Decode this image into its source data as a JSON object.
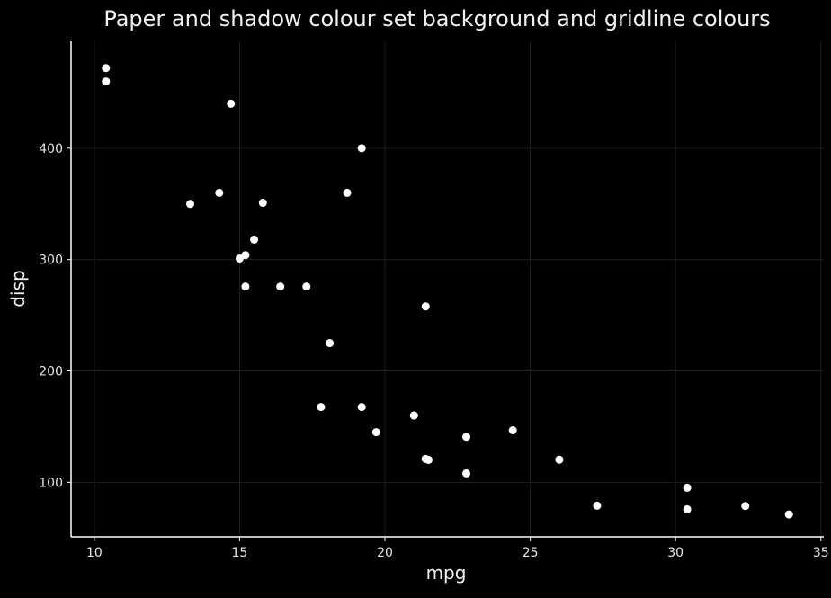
{
  "chart_data": {
    "type": "scatter",
    "title": "Paper and shadow colour set background and gridline colours",
    "xlabel": "mpg",
    "ylabel": "disp",
    "xlim": [
      9.2,
      35.1
    ],
    "ylim": [
      51,
      496
    ],
    "xticks": [
      10,
      15,
      20,
      25,
      30,
      35
    ],
    "yticks": [
      100,
      200,
      300,
      400
    ],
    "grid": true,
    "colors": {
      "background": "#000000",
      "grid": "#1e1e1e",
      "axis": "#ffffff",
      "point": "#ffffff",
      "text": "#f2f2f2"
    },
    "points": [
      {
        "x": 21.0,
        "y": 160
      },
      {
        "x": 21.0,
        "y": 160
      },
      {
        "x": 22.8,
        "y": 108
      },
      {
        "x": 21.4,
        "y": 258
      },
      {
        "x": 18.7,
        "y": 360
      },
      {
        "x": 18.1,
        "y": 225
      },
      {
        "x": 14.3,
        "y": 360
      },
      {
        "x": 24.4,
        "y": 146.7
      },
      {
        "x": 22.8,
        "y": 140.8
      },
      {
        "x": 19.2,
        "y": 167.6
      },
      {
        "x": 17.8,
        "y": 167.6
      },
      {
        "x": 16.4,
        "y": 275.8
      },
      {
        "x": 17.3,
        "y": 275.8
      },
      {
        "x": 15.2,
        "y": 275.8
      },
      {
        "x": 10.4,
        "y": 472
      },
      {
        "x": 10.4,
        "y": 460
      },
      {
        "x": 14.7,
        "y": 440
      },
      {
        "x": 32.4,
        "y": 78.7
      },
      {
        "x": 30.4,
        "y": 75.7
      },
      {
        "x": 33.9,
        "y": 71.1
      },
      {
        "x": 21.5,
        "y": 120.1
      },
      {
        "x": 15.5,
        "y": 318
      },
      {
        "x": 15.2,
        "y": 304
      },
      {
        "x": 13.3,
        "y": 350
      },
      {
        "x": 19.2,
        "y": 400
      },
      {
        "x": 27.3,
        "y": 79
      },
      {
        "x": 26.0,
        "y": 120.3
      },
      {
        "x": 30.4,
        "y": 95.1
      },
      {
        "x": 15.8,
        "y": 351
      },
      {
        "x": 19.7,
        "y": 145
      },
      {
        "x": 15.0,
        "y": 301
      },
      {
        "x": 21.4,
        "y": 121
      }
    ]
  }
}
